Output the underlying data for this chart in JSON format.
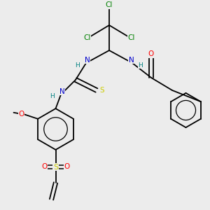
{
  "background_color": "#ececec",
  "colors": {
    "Cl": "#008000",
    "N": "#0000cc",
    "H": "#008080",
    "O": "#ff0000",
    "S": "#cccc00",
    "C": "#000000",
    "bond": "#000000"
  },
  "figsize": [
    3.0,
    3.0
  ],
  "dpi": 100
}
